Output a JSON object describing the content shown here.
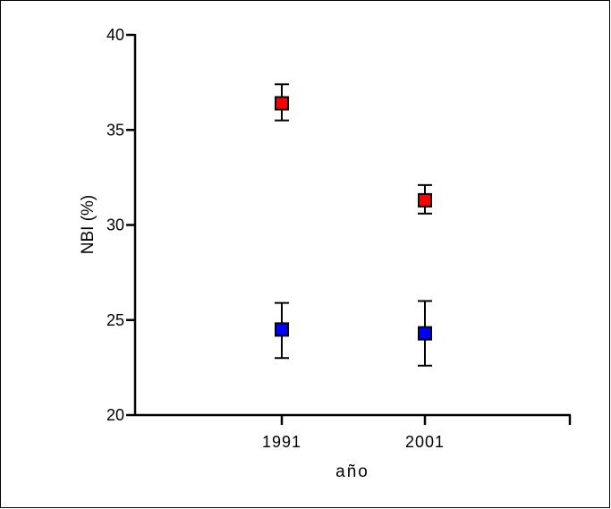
{
  "chart_data": {
    "type": "scatter",
    "xlabel": "año",
    "ylabel": "NBI (%)",
    "categories": [
      "1991",
      "2001"
    ],
    "ylim": [
      20,
      40
    ],
    "yticks": [
      "20",
      "25",
      "30",
      "35",
      "40"
    ],
    "error_bars": true,
    "legend": "none",
    "grid": false,
    "series": [
      {
        "color": "#ff0000",
        "marker": "square",
        "values": [
          36.4,
          31.3
        ],
        "err_low": [
          35.5,
          30.6
        ],
        "err_high": [
          37.4,
          32.1
        ]
      },
      {
        "color": "#0000ff",
        "marker": "square",
        "values": [
          24.5,
          24.3
        ],
        "err_low": [
          23.0,
          22.6
        ],
        "err_high": [
          25.9,
          26.0
        ]
      }
    ]
  }
}
